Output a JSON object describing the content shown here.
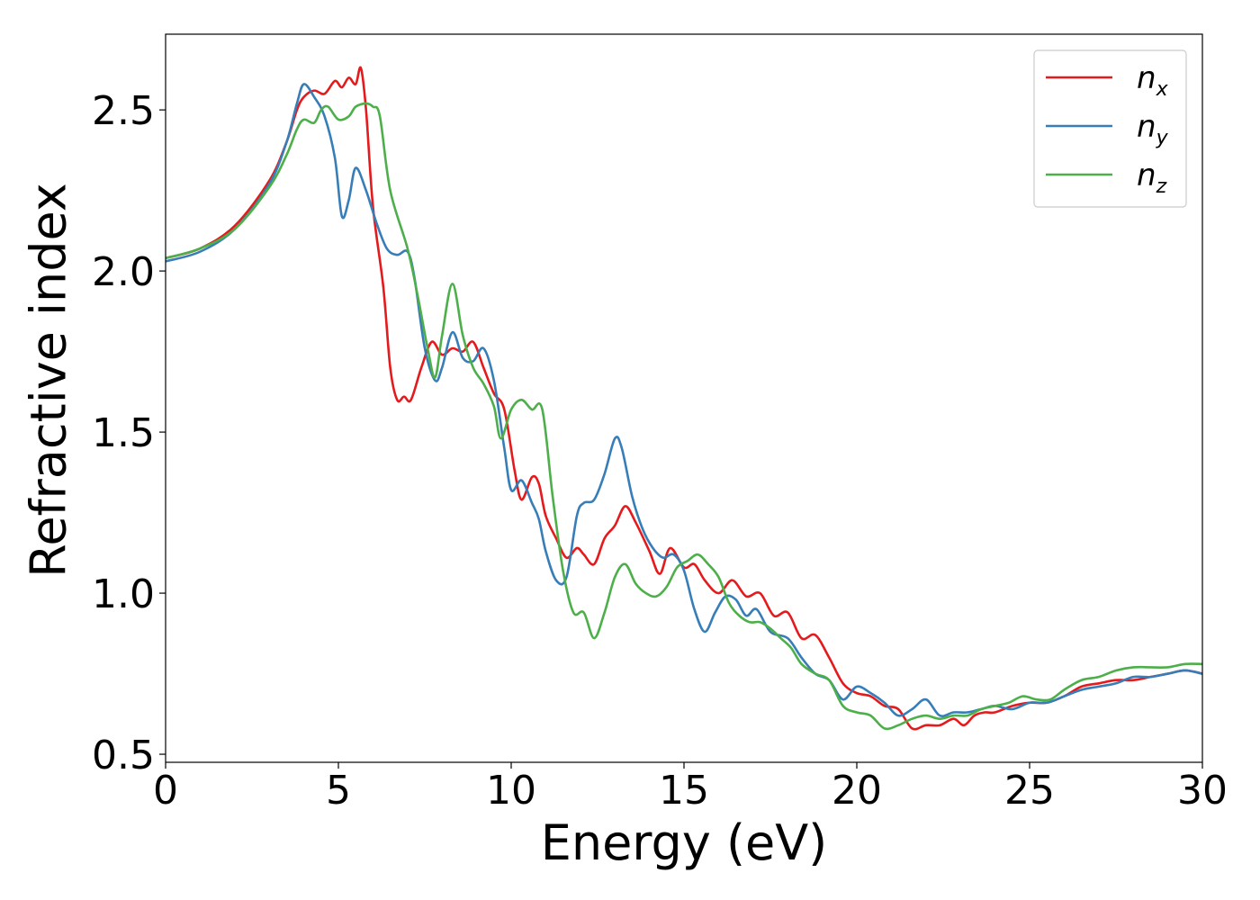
{
  "chart_data": {
    "type": "line",
    "xlabel": "Energy (eV)",
    "ylabel": "Refractive index",
    "xlim": [
      0,
      30
    ],
    "ylim": [
      0.475,
      2.735
    ],
    "xticks": [
      0,
      5,
      10,
      15,
      20,
      25,
      30
    ],
    "xtick_labels": [
      "0",
      "5",
      "10",
      "15",
      "20",
      "25",
      "30"
    ],
    "yticks": [
      0.5,
      1.0,
      1.5,
      2.0,
      2.5
    ],
    "ytick_labels": [
      "0.5",
      "1.0",
      "1.5",
      "2.0",
      "2.5"
    ],
    "grid": false,
    "legend_position": "top-right",
    "series": [
      {
        "name": "n",
        "subscript": "x",
        "color": "#e41a1c",
        "x": [
          0,
          1,
          2,
          3,
          3.5,
          3.8,
          4.0,
          4.3,
          4.6,
          4.9,
          5.1,
          5.3,
          5.5,
          5.65,
          5.8,
          6.0,
          6.3,
          6.5,
          6.7,
          6.9,
          7.1,
          7.4,
          7.7,
          8.0,
          8.3,
          8.6,
          8.9,
          9.2,
          9.5,
          9.8,
          10.1,
          10.3,
          10.6,
          10.8,
          11.0,
          11.3,
          11.6,
          11.9,
          12.1,
          12.4,
          12.7,
          13.0,
          13.3,
          13.6,
          14.0,
          14.3,
          14.6,
          15.0,
          15.3,
          15.6,
          16.0,
          16.4,
          16.8,
          17.2,
          17.6,
          18.0,
          18.4,
          18.8,
          19.2,
          19.6,
          20.0,
          20.4,
          20.8,
          21.2,
          21.6,
          22.0,
          22.4,
          22.8,
          23.1,
          23.4,
          23.7,
          24.0,
          24.5,
          25.0,
          25.5,
          26.0,
          26.5,
          27.0,
          27.5,
          28.0,
          28.5,
          29.0,
          29.5,
          30.0
        ],
        "y": [
          2.04,
          2.07,
          2.14,
          2.28,
          2.4,
          2.5,
          2.54,
          2.56,
          2.55,
          2.59,
          2.57,
          2.6,
          2.58,
          2.63,
          2.5,
          2.2,
          1.95,
          1.7,
          1.6,
          1.61,
          1.6,
          1.7,
          1.78,
          1.74,
          1.76,
          1.75,
          1.78,
          1.7,
          1.62,
          1.57,
          1.38,
          1.29,
          1.36,
          1.34,
          1.24,
          1.17,
          1.11,
          1.14,
          1.12,
          1.09,
          1.17,
          1.21,
          1.27,
          1.22,
          1.13,
          1.06,
          1.14,
          1.08,
          1.09,
          1.04,
          1.0,
          1.04,
          0.99,
          1.0,
          0.93,
          0.94,
          0.86,
          0.87,
          0.8,
          0.72,
          0.69,
          0.68,
          0.65,
          0.64,
          0.58,
          0.59,
          0.59,
          0.61,
          0.59,
          0.62,
          0.63,
          0.63,
          0.65,
          0.66,
          0.66,
          0.68,
          0.71,
          0.72,
          0.73,
          0.73,
          0.74,
          0.75,
          0.76,
          0.75
        ]
      },
      {
        "name": "n",
        "subscript": "y",
        "color": "#377eb8",
        "x": [
          0,
          1,
          2,
          3,
          3.5,
          3.8,
          4.0,
          4.3,
          4.6,
          4.9,
          5.1,
          5.3,
          5.5,
          5.8,
          6.1,
          6.4,
          6.7,
          7.0,
          7.2,
          7.5,
          7.8,
          8.0,
          8.3,
          8.6,
          8.9,
          9.2,
          9.5,
          9.8,
          10.0,
          10.3,
          10.6,
          10.8,
          11.0,
          11.3,
          11.6,
          11.9,
          12.1,
          12.4,
          12.7,
          13.0,
          13.2,
          13.5,
          13.8,
          14.1,
          14.4,
          14.7,
          15.0,
          15.3,
          15.6,
          15.9,
          16.2,
          16.5,
          16.8,
          17.1,
          17.5,
          18.0,
          18.4,
          18.8,
          19.2,
          19.6,
          20.0,
          20.4,
          20.8,
          21.2,
          21.6,
          22.0,
          22.4,
          22.8,
          23.2,
          23.6,
          24.0,
          24.5,
          25.0,
          25.5,
          26.0,
          26.5,
          27.0,
          27.5,
          28.0,
          28.5,
          29.0,
          29.5,
          30.0
        ],
        "y": [
          2.03,
          2.06,
          2.13,
          2.27,
          2.4,
          2.52,
          2.58,
          2.54,
          2.48,
          2.35,
          2.17,
          2.22,
          2.32,
          2.25,
          2.15,
          2.07,
          2.05,
          2.06,
          1.98,
          1.76,
          1.66,
          1.7,
          1.81,
          1.73,
          1.72,
          1.76,
          1.66,
          1.45,
          1.32,
          1.35,
          1.28,
          1.23,
          1.13,
          1.04,
          1.05,
          1.24,
          1.28,
          1.29,
          1.37,
          1.48,
          1.45,
          1.3,
          1.2,
          1.14,
          1.11,
          1.12,
          1.07,
          0.95,
          0.88,
          0.94,
          0.99,
          0.98,
          0.93,
          0.95,
          0.88,
          0.86,
          0.8,
          0.75,
          0.73,
          0.67,
          0.71,
          0.69,
          0.66,
          0.62,
          0.64,
          0.67,
          0.62,
          0.63,
          0.63,
          0.64,
          0.65,
          0.64,
          0.66,
          0.66,
          0.68,
          0.7,
          0.71,
          0.72,
          0.74,
          0.74,
          0.75,
          0.76,
          0.75
        ]
      },
      {
        "name": "n",
        "subscript": "z",
        "color": "#4daf4a",
        "x": [
          0,
          1,
          2,
          3,
          3.5,
          3.8,
          4.0,
          4.3,
          4.5,
          4.7,
          5.0,
          5.3,
          5.5,
          5.8,
          6.0,
          6.2,
          6.5,
          7.0,
          7.3,
          7.6,
          7.8,
          8.0,
          8.3,
          8.6,
          8.9,
          9.2,
          9.5,
          9.7,
          10.0,
          10.3,
          10.6,
          10.9,
          11.2,
          11.5,
          11.8,
          12.1,
          12.4,
          12.7,
          13.0,
          13.3,
          13.6,
          13.9,
          14.2,
          14.5,
          14.8,
          15.1,
          15.4,
          15.7,
          16.0,
          16.3,
          16.6,
          16.9,
          17.2,
          17.5,
          17.8,
          18.1,
          18.4,
          18.8,
          19.2,
          19.6,
          20.0,
          20.4,
          20.8,
          21.2,
          21.6,
          22.0,
          22.4,
          22.8,
          23.2,
          23.6,
          24.0,
          24.4,
          24.8,
          25.2,
          25.6,
          26.0,
          26.5,
          27.0,
          27.5,
          28.0,
          28.5,
          29.0,
          29.5,
          30.0
        ],
        "y": [
          2.04,
          2.07,
          2.13,
          2.26,
          2.36,
          2.44,
          2.47,
          2.46,
          2.5,
          2.51,
          2.47,
          2.48,
          2.51,
          2.52,
          2.51,
          2.48,
          2.25,
          2.07,
          1.92,
          1.75,
          1.67,
          1.8,
          1.96,
          1.8,
          1.7,
          1.65,
          1.58,
          1.48,
          1.57,
          1.6,
          1.57,
          1.57,
          1.3,
          1.07,
          0.94,
          0.94,
          0.86,
          0.94,
          1.05,
          1.09,
          1.03,
          1.0,
          0.99,
          1.02,
          1.08,
          1.1,
          1.12,
          1.09,
          1.05,
          0.97,
          0.93,
          0.91,
          0.91,
          0.89,
          0.86,
          0.83,
          0.78,
          0.75,
          0.73,
          0.65,
          0.63,
          0.62,
          0.58,
          0.59,
          0.61,
          0.62,
          0.61,
          0.62,
          0.62,
          0.64,
          0.65,
          0.66,
          0.68,
          0.67,
          0.67,
          0.7,
          0.73,
          0.74,
          0.76,
          0.77,
          0.77,
          0.77,
          0.78,
          0.78
        ]
      }
    ]
  }
}
